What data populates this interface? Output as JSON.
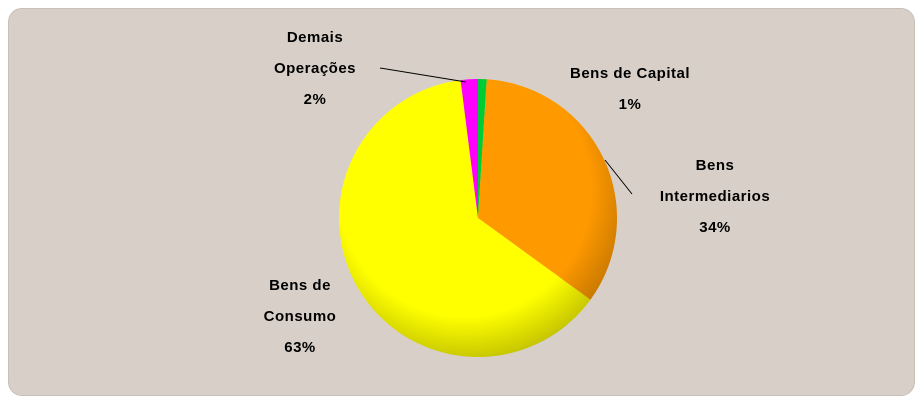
{
  "chart_data": {
    "type": "pie",
    "categories": [
      "Bens de Capital",
      "Bens Intermediarios",
      "Bens de Consumo",
      "Demais Operações"
    ],
    "values": [
      1,
      34,
      63,
      2
    ],
    "value_labels": [
      "1%",
      "34%",
      "63%",
      "2%"
    ],
    "colors": [
      "#00cc33",
      "#ff9900",
      "#ffff00",
      "#ff00ff"
    ]
  }
}
